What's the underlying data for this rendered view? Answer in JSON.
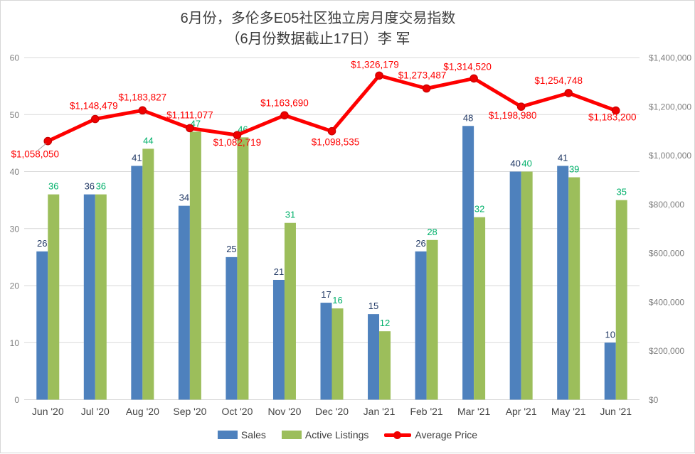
{
  "title": {
    "line1": "6月份，多伦多E05社区独立房月度交易指数",
    "line2": "（6月份数据截止17日）李 军"
  },
  "chart_data": {
    "type": "bar",
    "subtype": "combo-bar-line-dual-axis",
    "title": "6月份，多伦多E05社区独立房月度交易指数 （6月份数据截止17日）李 军",
    "categories": [
      "Jun '20",
      "Jul '20",
      "Aug '20",
      "Sep '20",
      "Oct '20",
      "Nov '20",
      "Dec '20",
      "Jan '21",
      "Feb '21",
      "Mar '21",
      "Apr '21",
      "May '21",
      "Jun '21"
    ],
    "series": [
      {
        "name": "Sales",
        "type": "bar",
        "axis": "left",
        "color": "#4e81bd",
        "label_color": "#203864",
        "values": [
          26,
          36,
          41,
          34,
          25,
          21,
          17,
          15,
          26,
          48,
          40,
          41,
          10
        ]
      },
      {
        "name": "Active Listings",
        "type": "bar",
        "axis": "left",
        "color": "#9cbe5b",
        "label_color": "#00b06a",
        "values": [
          36,
          36,
          44,
          47,
          46,
          31,
          16,
          12,
          28,
          32,
          40,
          39,
          35
        ]
      },
      {
        "name": "Average Price",
        "type": "line",
        "axis": "right",
        "color": "#fe0000",
        "marker_fill": "#ef0000",
        "marker_stroke": "#c90000",
        "label_color": "#fe0000",
        "values": [
          1058050,
          1148479,
          1183827,
          1111077,
          1082719,
          1163690,
          1098535,
          1326179,
          1273487,
          1314520,
          1198980,
          1254748,
          1183200
        ],
        "labels": [
          "$1,058,050",
          "$1,148,479",
          "$1,183,827",
          "$1,111,077",
          "$1,082,719",
          "$1,163,690",
          "$1,098,535",
          "$1,326,179",
          "$1,273,487",
          "$1,314,520",
          "$1,198,980",
          "$1,254,748",
          "$1,183,200"
        ],
        "label_offsets": [
          [
            -18,
            23
          ],
          [
            -2,
            -14
          ],
          [
            0,
            -14
          ],
          [
            0,
            -14
          ],
          [
            0,
            15
          ],
          [
            0,
            -13
          ],
          [
            5,
            20
          ],
          [
            -6,
            -11
          ],
          [
            -6,
            -14
          ],
          [
            -9,
            -12
          ],
          [
            -12,
            17
          ],
          [
            -14,
            -13
          ],
          [
            -5,
            14
          ]
        ],
        "leader_line_on_first_label": true
      }
    ],
    "left_axis": {
      "min": 0,
      "max": 60,
      "step": 10,
      "ticks": [
        "0",
        "10",
        "20",
        "30",
        "40",
        "50",
        "60"
      ]
    },
    "right_axis": {
      "min": 0,
      "max": 1400000,
      "step": 200000,
      "ticks": [
        "$0",
        "$200,000",
        "$400,000",
        "$600,000",
        "$800,000",
        "$1,000,000",
        "$1,200,000",
        "$1,400,000"
      ]
    },
    "grid": true,
    "gridline_color": "#d9d9d9",
    "axis_tick_color": "#7f7f7f",
    "x_label_color": "#444444",
    "legend_position": "bottom"
  }
}
